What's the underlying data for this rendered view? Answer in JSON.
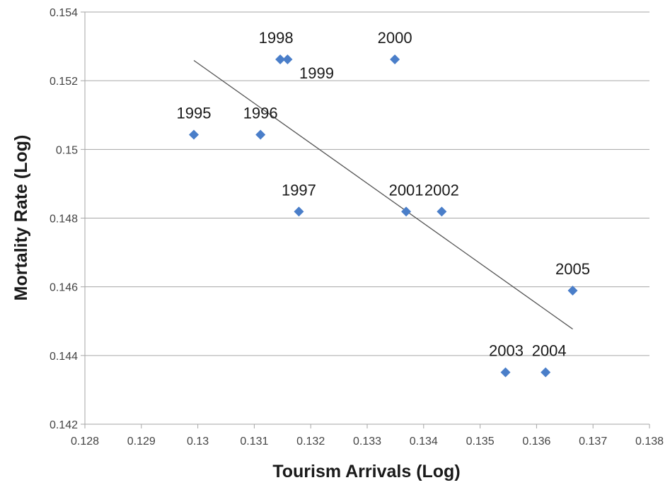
{
  "chart_data": {
    "type": "scatter",
    "title": "",
    "xlabel": "Tourism Arrivals (Log)",
    "ylabel": "Mortality Rate (Log)",
    "xlim": [
      0.128,
      0.138
    ],
    "ylim": [
      0.142,
      0.154
    ],
    "x_ticks": [
      "0.128",
      "0.129",
      "0.13",
      "0.131",
      "0.132",
      "0.133",
      "0.134",
      "0.135",
      "0.136",
      "0.137",
      "0.138"
    ],
    "y_ticks": [
      "0.142",
      "0.144",
      "0.146",
      "0.148",
      "0.15",
      "0.152",
      "0.154"
    ],
    "grid": "horizontal",
    "legend": "none",
    "points": [
      {
        "label": "1995",
        "x": 0.12993,
        "y": 0.15043
      },
      {
        "label": "1996",
        "x": 0.13111,
        "y": 0.15043
      },
      {
        "label": "1997",
        "x": 0.13179,
        "y": 0.14819
      },
      {
        "label": "1998",
        "x": 0.13146,
        "y": 0.15262
      },
      {
        "label": "1999",
        "x": 0.13159,
        "y": 0.15262
      },
      {
        "label": "2000",
        "x": 0.13349,
        "y": 0.15262
      },
      {
        "label": "2001",
        "x": 0.13369,
        "y": 0.14819
      },
      {
        "label": "2002",
        "x": 0.13432,
        "y": 0.14819
      },
      {
        "label": "2003",
        "x": 0.13545,
        "y": 0.14351
      },
      {
        "label": "2004",
        "x": 0.13616,
        "y": 0.14351
      },
      {
        "label": "2005",
        "x": 0.13664,
        "y": 0.14589
      }
    ],
    "trendline": {
      "x": [
        0.12993,
        0.13664
      ],
      "y": [
        0.15259,
        0.14477
      ]
    },
    "colors": {
      "marker": "#4a7ec9",
      "trendline": "#555555",
      "grid": "#a6a6a6",
      "axis": "#a6a6a6"
    }
  }
}
